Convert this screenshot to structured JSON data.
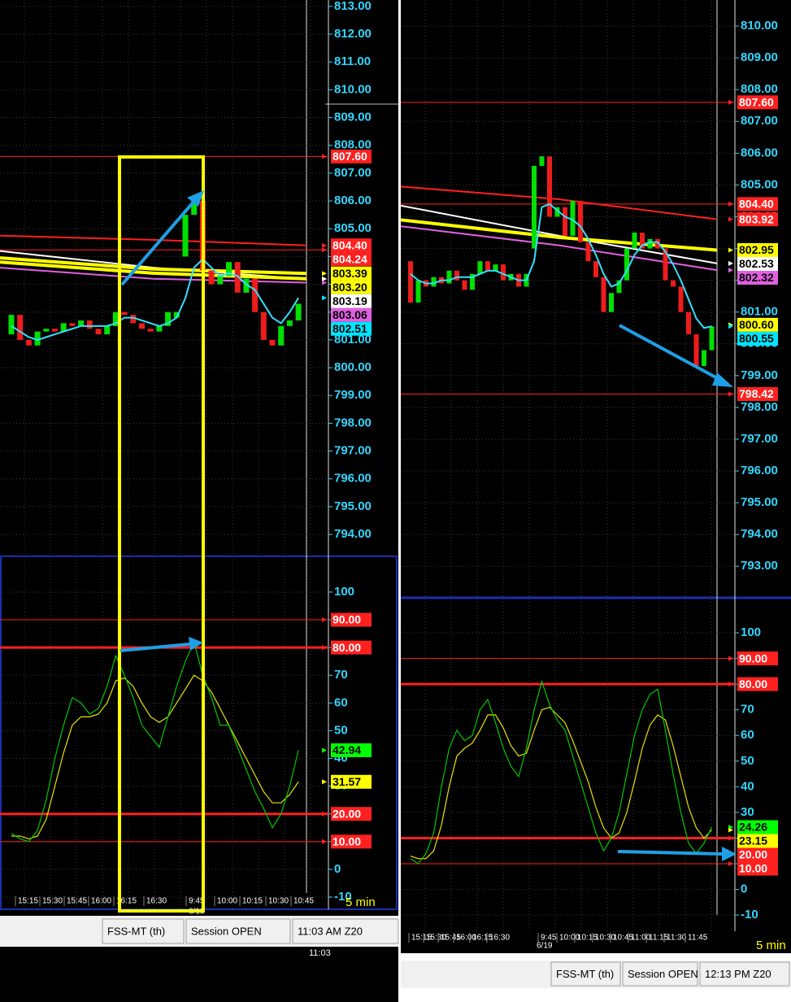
{
  "windows": [
    {
      "price": {
        "ylim": [
          793.33,
          813.23
        ],
        "yticks": [
          {
            "value": 813,
            "label": "813.00"
          },
          {
            "value": 812,
            "label": "812.00"
          },
          {
            "value": 811,
            "label": "811.00"
          },
          {
            "value": 810,
            "label": "810.00"
          },
          {
            "value": 809,
            "label": "809.00"
          },
          {
            "value": 808,
            "label": "808.00"
          },
          {
            "value": 807,
            "label": "807.00"
          },
          {
            "value": 806,
            "label": "806.00"
          },
          {
            "value": 805,
            "label": "805.00"
          },
          {
            "value": 804,
            "label": "804.00"
          },
          {
            "value": 803,
            "label": "803.00"
          },
          {
            "value": 802,
            "label": "802.00"
          },
          {
            "value": 801,
            "label": "801.00"
          },
          {
            "value": 800,
            "label": "800.00"
          },
          {
            "value": 799,
            "label": "799.00"
          },
          {
            "value": 798,
            "label": "798.00"
          },
          {
            "value": 797,
            "label": "797.00"
          },
          {
            "value": 796,
            "label": "796.00"
          },
          {
            "value": 795,
            "label": "795.00"
          },
          {
            "value": 794,
            "label": "794.00"
          }
        ],
        "candles": [
          [
            801.2,
            801.9
          ],
          [
            801.9,
            801.0
          ],
          [
            801.0,
            800.8
          ],
          [
            800.8,
            801.3
          ],
          [
            801.3,
            801.4
          ],
          [
            801.4,
            801.3
          ],
          [
            801.3,
            801.6
          ],
          [
            801.6,
            801.5
          ],
          [
            801.5,
            801.7
          ],
          [
            801.7,
            801.4
          ],
          [
            801.4,
            801.2
          ],
          [
            801.2,
            801.5
          ],
          [
            801.5,
            802.0
          ],
          [
            802.0,
            801.9
          ],
          [
            801.9,
            801.6
          ],
          [
            801.6,
            801.4
          ],
          [
            801.4,
            801.3
          ],
          [
            801.3,
            801.5
          ],
          [
            801.5,
            802.0
          ],
          [
            801.8,
            802.0
          ],
          [
            804.0,
            805.5
          ],
          [
            805.5,
            806.0
          ],
          [
            806.0,
            803.5
          ],
          [
            803.5,
            803.0
          ],
          [
            803.0,
            803.3
          ],
          [
            803.3,
            803.8
          ],
          [
            803.8,
            802.7
          ],
          [
            802.7,
            803.2
          ],
          [
            803.2,
            802.0
          ],
          [
            802.0,
            801.0
          ],
          [
            801.0,
            800.8
          ],
          [
            800.8,
            801.5
          ],
          [
            801.5,
            801.7
          ],
          [
            801.7,
            802.3
          ]
        ],
        "cyan_line": [
          801.5,
          801.3,
          801.1,
          801.0,
          801.1,
          801.2,
          801.3,
          801.4,
          801.5,
          801.5,
          801.5,
          801.5,
          801.6,
          801.8,
          801.8,
          801.7,
          801.6,
          801.5,
          801.6,
          801.8,
          802.5,
          803.6,
          803.9,
          803.6,
          803.3,
          803.4,
          803.3,
          803.0,
          802.8,
          802.3,
          801.8,
          801.6,
          802.0,
          802.51
        ],
        "moving_averages": [
          {
            "color": "#ff2020",
            "width": 2,
            "values": [
              804.75,
              804.6,
              804.4
            ]
          },
          {
            "color": "#ffffff",
            "width": 2,
            "values": [
              804.2,
              803.6,
              803.19
            ]
          },
          {
            "color": "#e060e0",
            "width": 2,
            "values": [
              803.6,
              803.2,
              803.06
            ]
          },
          {
            "color": "#ffff00",
            "width": 4,
            "values": [
              803.8,
              803.4,
              803.2
            ]
          },
          {
            "color": "#ffff00",
            "width": 4,
            "values": [
              803.95,
              803.55,
              803.39
            ]
          }
        ],
        "levels": [
          {
            "value": 807.6,
            "label": "807.60",
            "color": "#ff2020",
            "line": "thin"
          },
          {
            "value": 804.4,
            "label": "804.40",
            "color": "#ff2020"
          },
          {
            "value": 804.24,
            "label": "804.24",
            "color": "#ff2020",
            "line": "thin"
          },
          {
            "value": 803.39,
            "label": "803.39",
            "color": "#ffff00"
          },
          {
            "value": 803.2,
            "label": "803.20",
            "color": "#ffff00"
          },
          {
            "value": 803.19,
            "label": "803.19",
            "color": "#ffffff"
          },
          {
            "value": 803.06,
            "label": "803.06",
            "color": "#e060e0"
          },
          {
            "value": 802.51,
            "label": "802.51",
            "color": "#00e5ff"
          }
        ]
      },
      "stoch": {
        "ylim": [
          -14.4,
          112.3
        ],
        "yticks": [
          100,
          90,
          80,
          70,
          60,
          50,
          40,
          30,
          20,
          10,
          0,
          -10
        ],
        "green": [
          13,
          11,
          10,
          14,
          25,
          40,
          52,
          62,
          60,
          56,
          58,
          66,
          77,
          70,
          62,
          52,
          48,
          44,
          55,
          66,
          75,
          82,
          70,
          62,
          52,
          52,
          44,
          36,
          28,
          22,
          15,
          20,
          30,
          42.94
        ],
        "yellow": [
          12,
          12,
          11,
          12,
          18,
          30,
          42,
          52,
          55,
          55,
          56,
          60,
          68,
          69,
          66,
          60,
          55,
          53,
          55,
          60,
          65,
          70,
          68,
          64,
          58,
          52,
          46,
          40,
          34,
          28,
          24,
          24,
          27,
          31.57
        ],
        "levels": [
          {
            "value": 90,
            "label": "90.00",
            "color": "#ff2020",
            "line": "thin"
          },
          {
            "value": 80,
            "label": "80.00",
            "color": "#ff2020",
            "line": "thick"
          },
          {
            "value": 42.94,
            "label": "42.94",
            "color": "#00ff00"
          },
          {
            "value": 31.57,
            "label": "31.57",
            "color": "#ffff00"
          },
          {
            "value": 20,
            "label": "20.00",
            "color": "#ff2020",
            "line": "thick"
          },
          {
            "value": 10,
            "label": "10.00",
            "color": "#ff2020",
            "line": "thin"
          }
        ]
      },
      "time_labels": [
        "15:15",
        "15:30",
        "15:45",
        "16:00",
        "16:15",
        "16:30",
        "9:45",
        "10:00",
        "10:15",
        "10:30",
        "10:45"
      ],
      "date": "6/19",
      "interval": "5 min",
      "status": [
        "FSS-MT (th)",
        "Session OPEN",
        "11:03 AM Z20"
      ],
      "clock": "11:03"
    },
    {
      "price": {
        "ylim": [
          792.06,
          810.82
        ],
        "yticks": [
          {
            "value": 810,
            "label": "810.00"
          },
          {
            "value": 809,
            "label": "809.00"
          },
          {
            "value": 808,
            "label": "808.00"
          },
          {
            "value": 807,
            "label": "807.00"
          },
          {
            "value": 806,
            "label": "806.00"
          },
          {
            "value": 805,
            "label": "805.00"
          },
          {
            "value": 804,
            "label": "804.00"
          },
          {
            "value": 803,
            "label": "803.00"
          },
          {
            "value": 802,
            "label": "802.00"
          },
          {
            "value": 801,
            "label": "801.00"
          },
          {
            "value": 800,
            "label": "800.00"
          },
          {
            "value": 799,
            "label": "799.00"
          },
          {
            "value": 798,
            "label": "798.00"
          },
          {
            "value": 797,
            "label": "797.00"
          },
          {
            "value": 796,
            "label": "796.00"
          },
          {
            "value": 795,
            "label": "795.00"
          },
          {
            "value": 794,
            "label": "794.00"
          },
          {
            "value": 793,
            "label": "793.00"
          }
        ],
        "candles": [
          [
            802.6,
            801.3
          ],
          [
            801.3,
            802.0
          ],
          [
            802.0,
            801.8
          ],
          [
            801.8,
            802.1
          ],
          [
            802.1,
            801.9
          ],
          [
            801.9,
            802.3
          ],
          [
            802.3,
            802.0
          ],
          [
            802.0,
            801.7
          ],
          [
            801.7,
            802.2
          ],
          [
            802.2,
            802.6
          ],
          [
            802.6,
            802.3
          ],
          [
            802.3,
            802.5
          ],
          [
            802.5,
            802.0
          ],
          [
            802.0,
            802.2
          ],
          [
            802.2,
            801.8
          ],
          [
            801.8,
            802.2
          ],
          [
            803.0,
            805.6
          ],
          [
            805.6,
            805.9
          ],
          [
            805.9,
            804.0
          ],
          [
            804.0,
            804.3
          ],
          [
            804.3,
            803.4
          ],
          [
            803.4,
            804.5
          ],
          [
            804.5,
            803.2
          ],
          [
            803.2,
            802.6
          ],
          [
            802.6,
            802.1
          ],
          [
            802.1,
            801.0
          ],
          [
            801.0,
            801.6
          ],
          [
            801.6,
            802.0
          ],
          [
            802.0,
            803.0
          ],
          [
            803.0,
            803.5
          ],
          [
            803.5,
            803.0
          ],
          [
            803.0,
            803.3
          ],
          [
            803.3,
            803.0
          ],
          [
            803.0,
            802.0
          ],
          [
            802.0,
            801.8
          ],
          [
            801.8,
            801.0
          ],
          [
            801.0,
            800.3
          ],
          [
            800.3,
            799.3
          ],
          [
            799.3,
            799.8
          ],
          [
            799.8,
            800.55
          ]
        ],
        "cyan_line": [
          802.2,
          802.0,
          801.9,
          801.9,
          802.0,
          802.0,
          802.1,
          802.1,
          802.1,
          802.2,
          802.3,
          802.3,
          802.2,
          802.1,
          802.0,
          802.0,
          802.6,
          804.3,
          804.4,
          804.2,
          804.0,
          803.9,
          803.7,
          803.3,
          802.8,
          802.2,
          801.8,
          801.9,
          802.3,
          802.8,
          803.1,
          803.2,
          803.2,
          802.9,
          802.5,
          802.0,
          801.4,
          800.8,
          800.5,
          800.55
        ],
        "moving_averages": [
          {
            "color": "#ff2020",
            "width": 2,
            "values": [
              804.95,
              804.55,
              803.92
            ]
          },
          {
            "color": "#ffffff",
            "width": 2,
            "values": [
              804.35,
              803.4,
              802.53
            ]
          },
          {
            "color": "#e060e0",
            "width": 2,
            "values": [
              803.7,
              803.1,
              802.32
            ]
          },
          {
            "color": "#ffff00",
            "width": 4,
            "values": [
              803.9,
              803.35,
              802.95
            ]
          }
        ],
        "levels": [
          {
            "value": 807.6,
            "label": "807.60",
            "color": "#ff2020",
            "line": "thin"
          },
          {
            "value": 804.4,
            "label": "804.40",
            "color": "#ff2020",
            "line": "thin"
          },
          {
            "value": 803.92,
            "label": "803.92",
            "color": "#ff2020"
          },
          {
            "value": 802.95,
            "label": "802.95",
            "color": "#ffff00"
          },
          {
            "value": 802.53,
            "label": "802.53",
            "color": "#ffffff"
          },
          {
            "value": 802.32,
            "label": "802.32",
            "color": "#e060e0"
          },
          {
            "value": 800.6,
            "label": "800.60",
            "color": "#ffff00"
          },
          {
            "value": 800.55,
            "label": "800.55",
            "color": "#00e5ff"
          },
          {
            "value": 798.42,
            "label": "798.42",
            "color": "#ff2020",
            "line": "thin"
          }
        ]
      },
      "stoch": {
        "ylim": [
          -16.3,
          113
        ],
        "yticks": [
          100,
          90,
          80,
          70,
          60,
          50,
          40,
          30,
          20,
          10,
          0,
          -10
        ],
        "green": [
          12,
          10,
          14,
          22,
          40,
          55,
          62,
          58,
          60,
          70,
          74,
          65,
          55,
          48,
          44,
          55,
          70,
          81,
          72,
          66,
          62,
          52,
          42,
          32,
          22,
          15,
          20,
          30,
          45,
          60,
          70,
          76,
          78,
          62,
          45,
          30,
          18,
          14,
          18,
          24.26
        ],
        "yellow": [
          13,
          12,
          12,
          15,
          25,
          40,
          52,
          55,
          57,
          62,
          68,
          68,
          63,
          56,
          52,
          53,
          62,
          70,
          71,
          68,
          65,
          58,
          50,
          42,
          32,
          24,
          20,
          22,
          30,
          42,
          55,
          64,
          68,
          66,
          56,
          44,
          32,
          24,
          20,
          23.15
        ],
        "levels": [
          {
            "value": 90,
            "label": "90.00",
            "color": "#ff2020",
            "line": "thin"
          },
          {
            "value": 80,
            "label": "80.00",
            "color": "#ff2020",
            "line": "thick"
          },
          {
            "value": 24.26,
            "label": "24.26",
            "color": "#00ff00"
          },
          {
            "value": 23.15,
            "label": "23.15",
            "color": "#ffff00"
          },
          {
            "value": 20,
            "label": "20.00",
            "color": "#ff2020",
            "line": "thick"
          },
          {
            "value": 10,
            "label": "10.00",
            "color": "#ff2020",
            "line": "thin"
          }
        ]
      },
      "time_labels": [
        "15:15",
        "15:30",
        "15:45",
        "16:00",
        "16:15",
        "16:30",
        "9:45",
        "10:00",
        "10:15",
        "10:30",
        "10:45",
        "11:00",
        "11:15",
        "11:30",
        "11:45"
      ],
      "date": "6/19",
      "interval": "5 min",
      "status": [
        "FSS-MT (th)",
        "Session OPEN",
        "12:13 PM Z20"
      ]
    }
  ]
}
